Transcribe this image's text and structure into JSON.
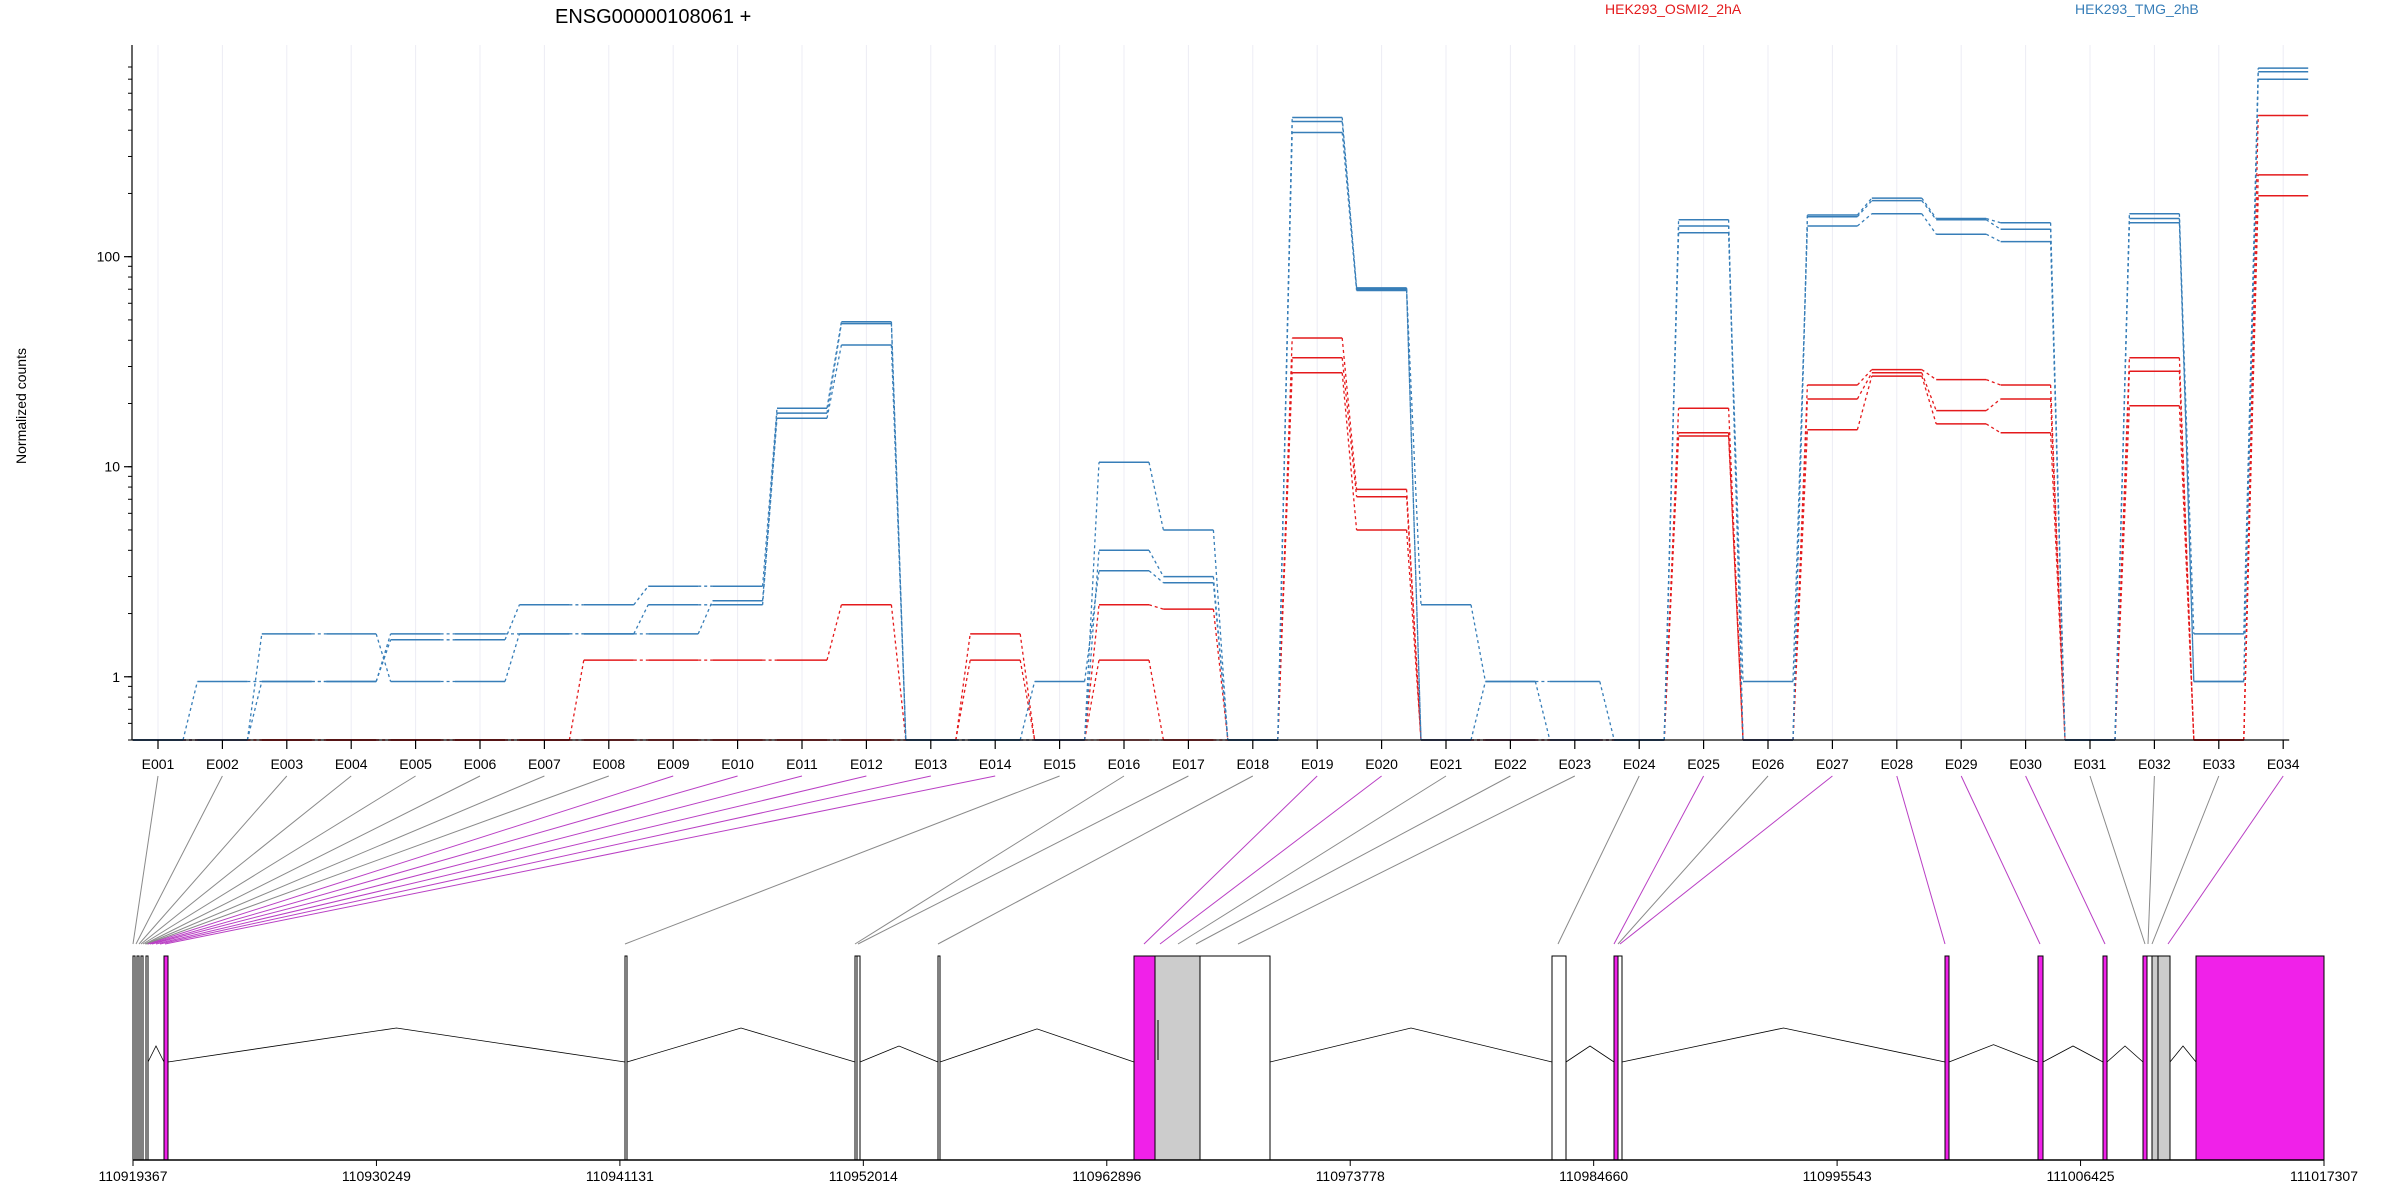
{
  "chart_data": {
    "type": "line",
    "title": "ENSG00000108061 +",
    "ylabel": "Normalized counts",
    "yscale": "log",
    "yticks": [
      1,
      10,
      100
    ],
    "ylim": [
      0.5,
      800
    ],
    "grid": true,
    "legend": [
      {
        "name": "HEK293_OSMI2_2hA",
        "color": "#e41a1c"
      },
      {
        "name": "HEK293_TMG_2hB",
        "color": "#377eb8"
      }
    ],
    "categories": [
      "E001",
      "E002",
      "E003",
      "E004",
      "E005",
      "E006",
      "E007",
      "E008",
      "E009",
      "E010",
      "E011",
      "E012",
      "E013",
      "E014",
      "E015",
      "E016",
      "E017",
      "E018",
      "E019",
      "E020",
      "E021",
      "E022",
      "E023",
      "E024",
      "E025",
      "E026",
      "E027",
      "E028",
      "E029",
      "E030",
      "E031",
      "E032",
      "E033",
      "E034"
    ],
    "series": [
      {
        "group": "HEK293_OSMI2_2hA",
        "color": "#e41a1c",
        "values": [
          0.5,
          0.5,
          0.5,
          0.5,
          0.5,
          0.5,
          0.5,
          0.5,
          0.5,
          0.5,
          0.5,
          0.5,
          0.5,
          1.2,
          0.5,
          0.5,
          0.5,
          0.5,
          28,
          5,
          0.5,
          0.5,
          0.5,
          0.5,
          14,
          0.5,
          15,
          27,
          16,
          14.5,
          0.5,
          19.5,
          0.5,
          195
        ]
      },
      {
        "group": "HEK293_OSMI2_2hA",
        "color": "#e41a1c",
        "values": [
          0.5,
          0.5,
          0.5,
          0.5,
          0.5,
          0.5,
          0.5,
          1.2,
          1.2,
          1.2,
          1.2,
          2.2,
          0.5,
          1.6,
          0.5,
          1.2,
          0.5,
          0.5,
          33,
          7.2,
          0.5,
          0.5,
          0.5,
          0.5,
          14.5,
          0.5,
          21,
          28,
          18.5,
          21,
          0.5,
          28.5,
          0.5,
          245
        ]
      },
      {
        "group": "HEK293_OSMI2_2hA",
        "color": "#e41a1c",
        "values": [
          0.5,
          0.5,
          0.5,
          0.5,
          0.5,
          0.5,
          0.5,
          0.5,
          0.5,
          0.5,
          0.5,
          0.5,
          0.5,
          0.5,
          0.5,
          2.2,
          2.1,
          0.5,
          41,
          7.8,
          0.5,
          0.5,
          0.5,
          0.5,
          19,
          0.5,
          24.5,
          29,
          26,
          24.5,
          0.5,
          33,
          0.5,
          470
        ]
      },
      {
        "group": "HEK293_TMG_2hB",
        "color": "#377eb8",
        "values": [
          0.5,
          0.95,
          0.95,
          0.95,
          1.6,
          1.6,
          1.6,
          1.6,
          2.2,
          2.2,
          17,
          38,
          0.5,
          0.5,
          0.95,
          3.2,
          2.8,
          0.5,
          390,
          69,
          0.5,
          0.95,
          0.95,
          0.5,
          130,
          0.95,
          140,
          160,
          128,
          118,
          0.5,
          145,
          0.95,
          700
        ]
      },
      {
        "group": "HEK293_TMG_2hB",
        "color": "#377eb8",
        "values": [
          0.5,
          0.5,
          1.6,
          1.6,
          0.95,
          0.95,
          1.6,
          1.6,
          1.6,
          2.3,
          18,
          48,
          0.5,
          0.5,
          0.5,
          4,
          3,
          0.5,
          440,
          70,
          2.2,
          0.95,
          0.5,
          0.5,
          140,
          0.5,
          155,
          185,
          150,
          135,
          0.5,
          152,
          1.6,
          760
        ]
      },
      {
        "group": "HEK293_TMG_2hB",
        "color": "#377eb8",
        "values": [
          0.5,
          0.5,
          0.95,
          0.95,
          1.5,
          1.5,
          2.2,
          2.2,
          2.7,
          2.7,
          19,
          49,
          0.5,
          0.5,
          0.5,
          10.5,
          5,
          0.5,
          460,
          71,
          0.5,
          0.5,
          0.5,
          0.5,
          150,
          0.5,
          158,
          190,
          152,
          145,
          0.5,
          160,
          0.95,
          790
        ]
      }
    ],
    "genomic_ticks": [
      "110919367",
      "110930249",
      "110941131",
      "110952014",
      "110962896",
      "110973778",
      "110984660",
      "110995543",
      "111006425",
      "111017307"
    ]
  }
}
